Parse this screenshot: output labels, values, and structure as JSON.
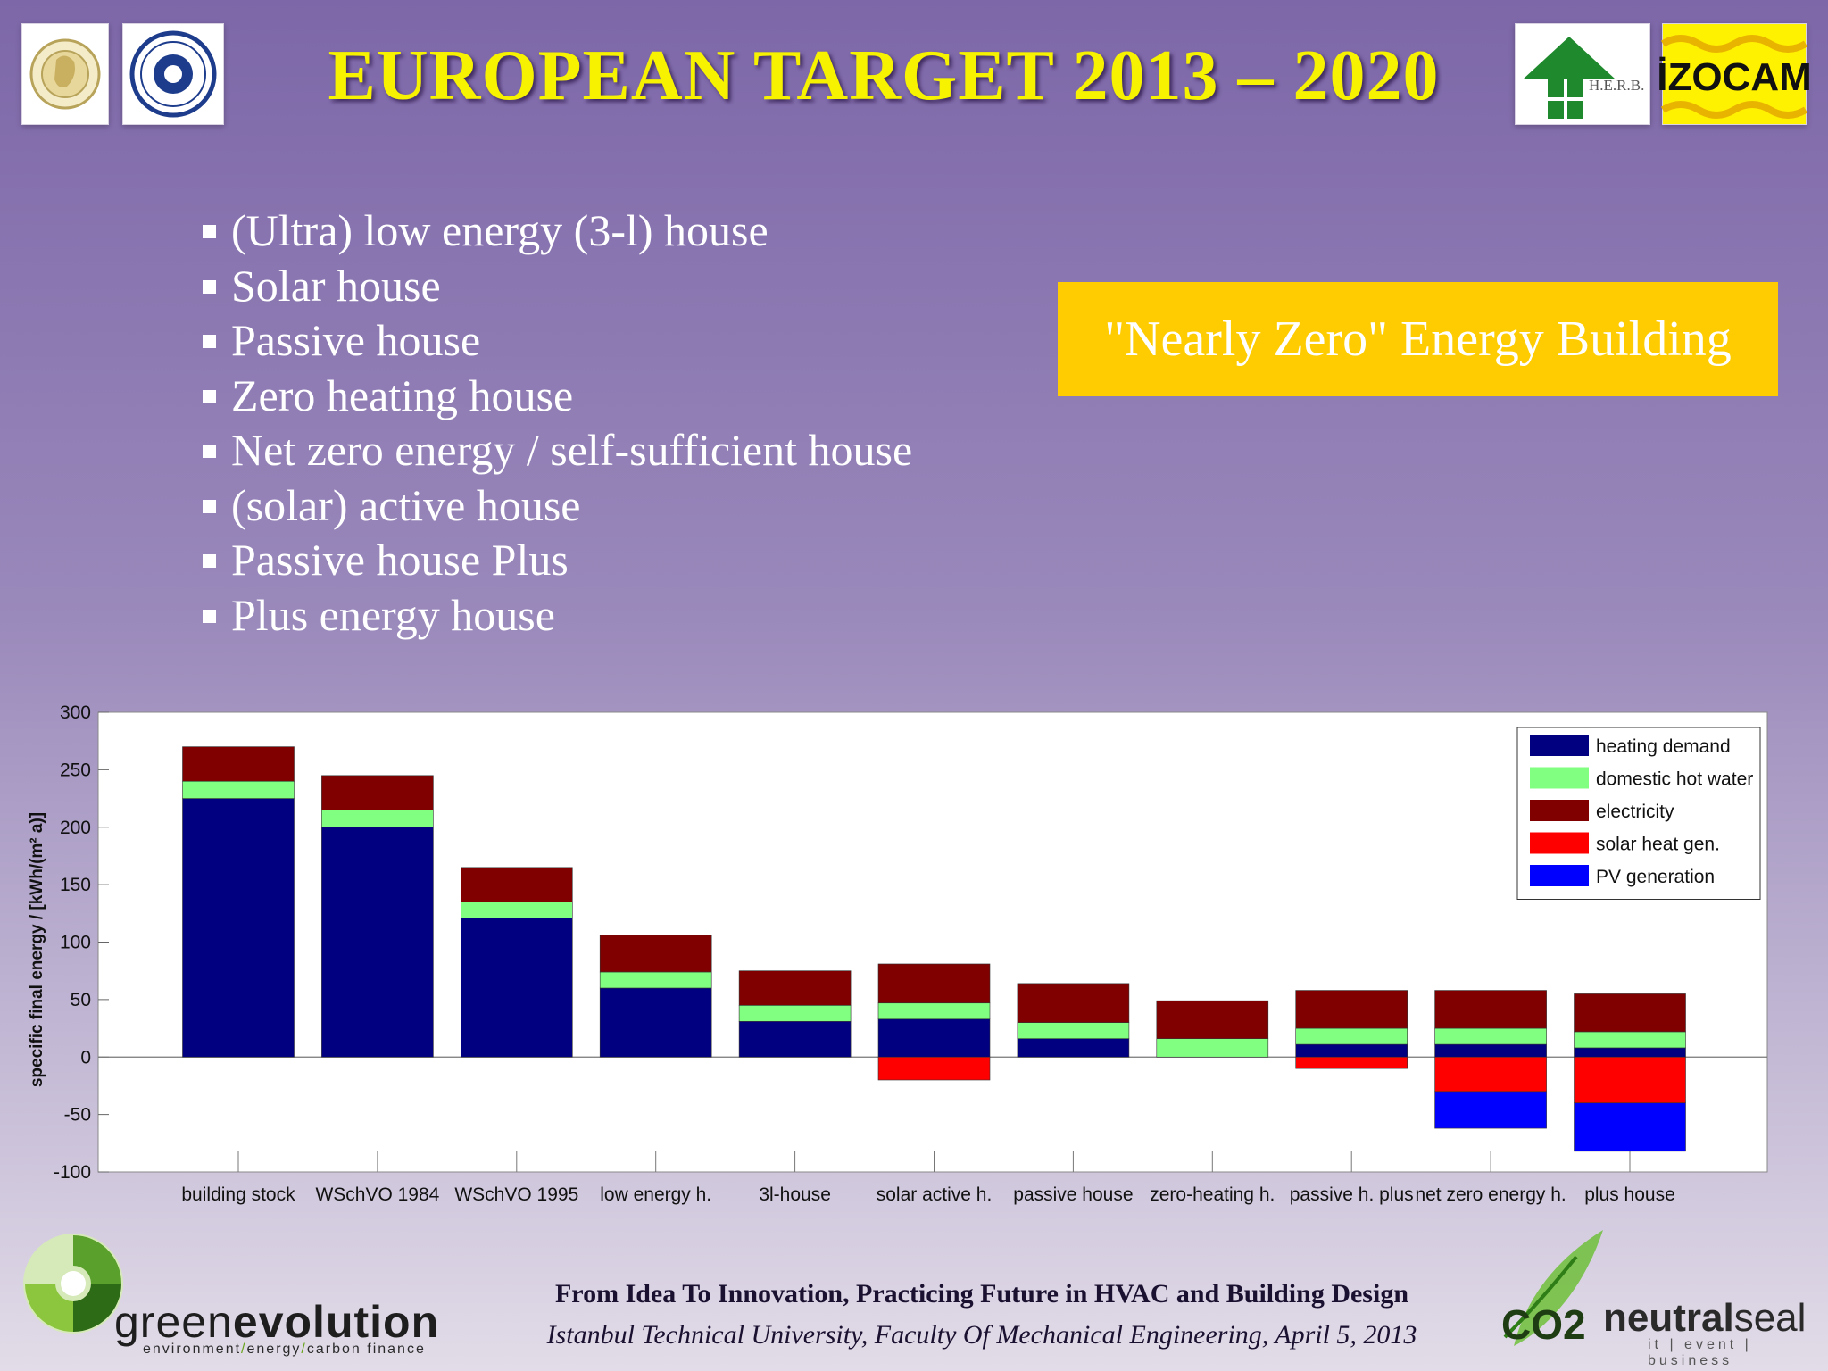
{
  "title": "EUROPEAN TARGET 2013 – 2020",
  "bullets": [
    "(Ultra) low energy (3-l) house",
    "Solar house",
    "Passive house",
    "Zero heating house",
    "Net zero energy / self-sufficient house",
    "(solar) active house",
    "Passive house Plus",
    "Plus energy house"
  ],
  "highlight_box": {
    "text": "\"Nearly Zero\" Energy Building",
    "color": "#fecc00"
  },
  "logos": {
    "herb": "H.E.R.B.",
    "izocam": "İZOCAM",
    "greenevolution": {
      "name_part1": "green",
      "name_part2": "evolution",
      "tagline": [
        "environment",
        "energy",
        "carbon finance"
      ]
    },
    "neutralseal": {
      "co2": "CO2",
      "name_part1": "neutral",
      "name_part2": "seal",
      "tagline": [
        "it",
        "event",
        "business"
      ]
    }
  },
  "footer": {
    "line1": "From Idea To Innovation,  Practicing Future in HVAC and Building Design",
    "line2": "Istanbul Technical University, Faculty Of Mechanical Engineering, April 5, 2013"
  },
  "chart_data": {
    "type": "bar",
    "stacked": true,
    "ylabel": "specific final energy / [kWh/(m² a)]",
    "ylim": [
      -100,
      300
    ],
    "yticks": [
      300,
      250,
      200,
      150,
      100,
      50,
      0,
      -50,
      -100
    ],
    "legend_position": "top-right",
    "categories": [
      "building stock",
      "WSchVO 1984",
      "WSchVO 1995",
      "low energy h.",
      "3l-house",
      "solar active h.",
      "passive house",
      "zero-heating h.",
      "passive h. plus",
      "net zero energy h.",
      "plus house"
    ],
    "series": [
      {
        "name": "heating demand",
        "color": "#000080",
        "values": [
          225,
          200,
          121,
          60,
          31,
          33,
          16,
          0,
          11,
          11,
          8
        ]
      },
      {
        "name": "domestic hot water",
        "color": "#80ff80",
        "values": [
          15,
          15,
          14,
          14,
          14,
          14,
          14,
          16,
          14,
          14,
          14
        ]
      },
      {
        "name": "electricity",
        "color": "#800000",
        "values": [
          30,
          30,
          30,
          32,
          30,
          34,
          34,
          33,
          33,
          33,
          33
        ]
      },
      {
        "name": "solar heat gen.",
        "color": "#ff0000",
        "values": [
          0,
          0,
          0,
          0,
          0,
          -20,
          0,
          0,
          -10,
          -30,
          -40
        ]
      },
      {
        "name": "PV generation",
        "color": "#0000ff",
        "values": [
          0,
          0,
          0,
          0,
          0,
          0,
          0,
          0,
          0,
          -32,
          -42
        ]
      }
    ]
  }
}
